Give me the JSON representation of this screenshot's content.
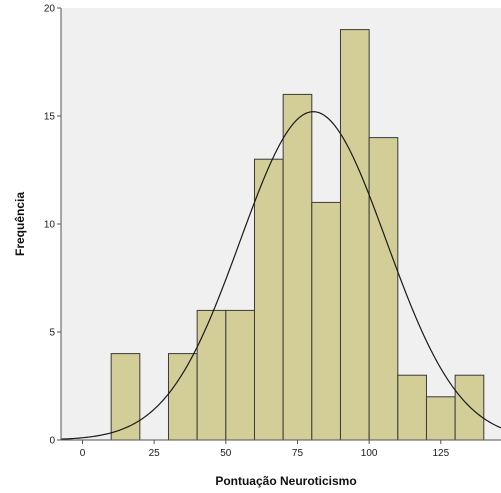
{
  "chart_data": {
    "type": "bar",
    "title": "",
    "xlabel": "Pontuação Neuroticismo",
    "ylabel": "Frequência",
    "xlim": [
      -7.5,
      146
    ],
    "ylim": [
      0,
      20
    ],
    "x_ticks": [
      0,
      25,
      50,
      75,
      100,
      125
    ],
    "y_ticks": [
      0,
      5,
      10,
      15,
      20
    ],
    "bin_width": 10,
    "bins": [
      {
        "start": 10,
        "end": 20,
        "value": 4
      },
      {
        "start": 30,
        "end": 40,
        "value": 4
      },
      {
        "start": 40,
        "end": 50,
        "value": 6
      },
      {
        "start": 50,
        "end": 60,
        "value": 6
      },
      {
        "start": 60,
        "end": 70,
        "value": 13
      },
      {
        "start": 70,
        "end": 80,
        "value": 16
      },
      {
        "start": 80,
        "end": 90,
        "value": 11
      },
      {
        "start": 90,
        "end": 100,
        "value": 19
      },
      {
        "start": 100,
        "end": 110,
        "value": 14
      },
      {
        "start": 110,
        "end": 120,
        "value": 3
      },
      {
        "start": 120,
        "end": 130,
        "value": 2
      },
      {
        "start": 130,
        "end": 140,
        "value": 3
      }
    ],
    "normal_curve": {
      "mean": 80.5,
      "std_dev": 25.5,
      "peak": 15.2
    },
    "grid": false,
    "legend": "none",
    "colors": {
      "plot_background": "#f0f0f0",
      "bar_fill": "#d3ce97",
      "bar_stroke": "#3a3a3a",
      "curve": "#1a1a1a",
      "axis": "#555555"
    }
  }
}
